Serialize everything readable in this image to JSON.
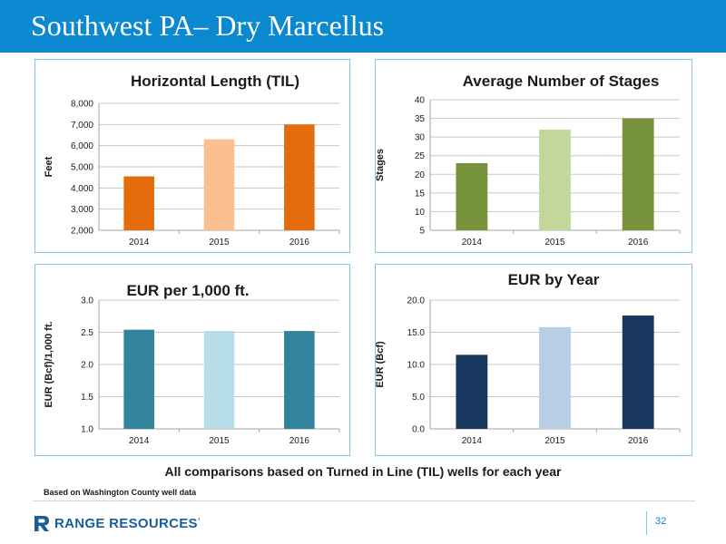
{
  "slide": {
    "title": "Southwest PA– Dry Marcellus",
    "footnote": "All comparisons based on Turned in Line (TIL) wells for each year",
    "source": "Based on Washington County well data",
    "logo_text": "RANGE RESOURCES",
    "logo_mark": "’",
    "page_number": "32",
    "colors": {
      "header": "#0a88d0",
      "panel_border": "#7ec8e3",
      "logo": "#1b5e97"
    }
  },
  "chart_data": [
    {
      "id": "horizontal-length",
      "type": "bar",
      "title": "Horizontal Length (TIL)",
      "xlabel": "",
      "ylabel": "Feet",
      "categories": [
        "2014",
        "2015",
        "2016"
      ],
      "values": [
        4550,
        6300,
        7000
      ],
      "colors": [
        "#e46c0a",
        "#fac090",
        "#e46c0a"
      ],
      "ylim": [
        2000,
        8000
      ],
      "yticks": [
        "2,000",
        "3,000",
        "4,000",
        "5,000",
        "6,000",
        "7,000",
        "8,000"
      ],
      "grid": true,
      "legend": "none"
    },
    {
      "id": "average-stages",
      "type": "bar",
      "title": "Average Number of Stages",
      "xlabel": "",
      "ylabel": "Stages",
      "categories": [
        "2014",
        "2015",
        "2016"
      ],
      "values": [
        23,
        32,
        35
      ],
      "colors": [
        "#77933c",
        "#c4d79b",
        "#77933c"
      ],
      "ylim": [
        5,
        40
      ],
      "yticks": [
        "5",
        "10",
        "15",
        "20",
        "25",
        "30",
        "35",
        "40"
      ],
      "grid": true,
      "legend": "none"
    },
    {
      "id": "eur-per-1000ft",
      "type": "bar",
      "title": "EUR per 1,000 ft.",
      "xlabel": "",
      "ylabel": "EUR (Bcf)/1,000 ft.",
      "categories": [
        "2014",
        "2015",
        "2016"
      ],
      "values": [
        2.54,
        2.52,
        2.52
      ],
      "colors": [
        "#31849b",
        "#b7dee8",
        "#31849b"
      ],
      "ylim": [
        1.0,
        3.0
      ],
      "yticks": [
        "1.0",
        "1.5",
        "2.0",
        "2.5",
        "3.0"
      ],
      "grid": true,
      "legend": "none"
    },
    {
      "id": "eur-by-year",
      "type": "bar",
      "title": "EUR by Year",
      "xlabel": "",
      "ylabel": "EUR (Bcf)",
      "categories": [
        "2014",
        "2015",
        "2016"
      ],
      "values": [
        11.5,
        15.8,
        17.6
      ],
      "colors": [
        "#17375e",
        "#b9cde5",
        "#17375e"
      ],
      "ylim": [
        0,
        20
      ],
      "yticks": [
        "0.0",
        "5.0",
        "10.0",
        "15.0",
        "20.0"
      ],
      "grid": true,
      "legend": "none"
    }
  ]
}
